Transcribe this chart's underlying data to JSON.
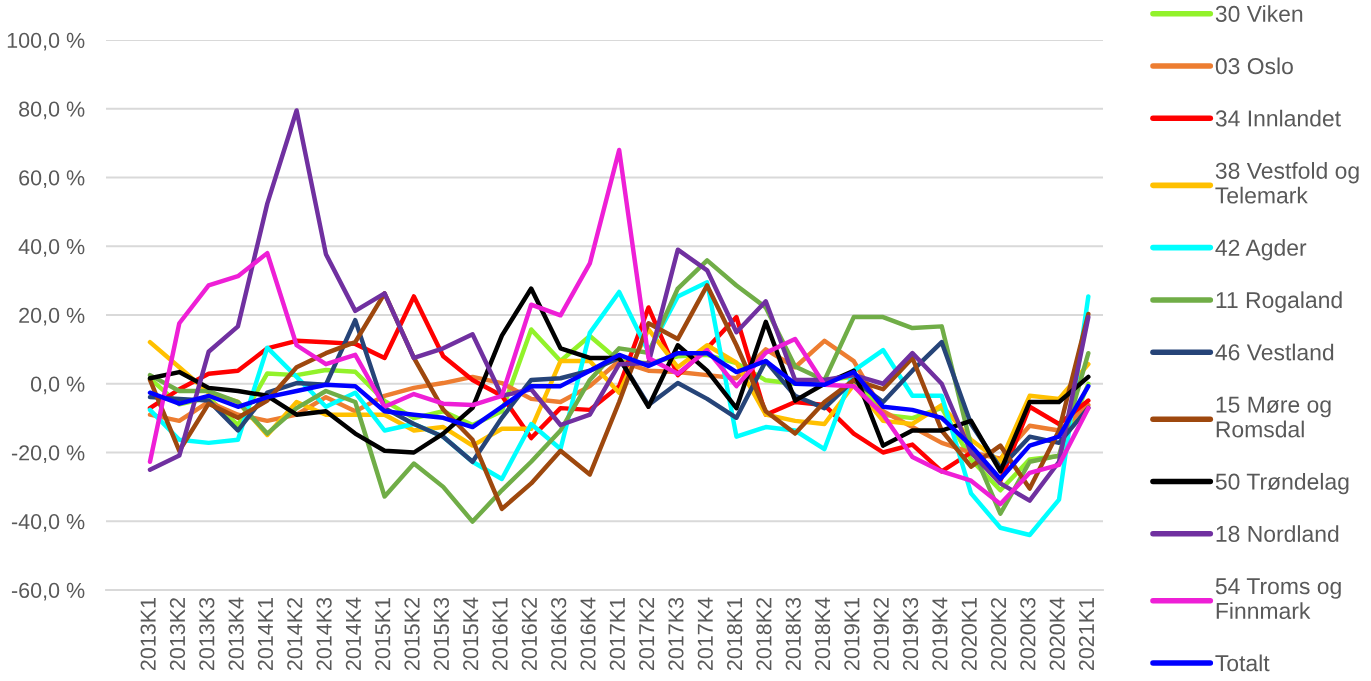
{
  "chart_data": {
    "type": "line",
    "categories": [
      "2013K1",
      "2013K2",
      "2013K3",
      "2013K4",
      "2014K1",
      "2014K2",
      "2014K3",
      "2014K4",
      "2015K1",
      "2015K2",
      "2015K3",
      "2015K4",
      "2016K1",
      "2016K2",
      "2016K3",
      "2016K4",
      "2017K1",
      "2017K2",
      "2017K3",
      "2017K4",
      "2018K1",
      "2018K2",
      "2018K3",
      "2018K4",
      "2019K1",
      "2019K2",
      "2019K3",
      "2019K4",
      "2020K1",
      "2020K2",
      "2020K3",
      "2020K4",
      "2021K1"
    ],
    "series": [
      {
        "name": "30 Viken",
        "color": "#92f22a",
        "values": [
          1.5,
          -6,
          -4,
          -12,
          3,
          2.5,
          4,
          3.5,
          -5,
          -10,
          -8,
          -12,
          -8,
          15.8,
          6.6,
          13.9,
          6.6,
          6,
          8,
          8.4,
          6,
          1,
          0,
          1,
          2,
          -9,
          -10,
          -7,
          -22,
          -31,
          -22,
          -21,
          0
        ]
      },
      {
        "name": "03 Oslo",
        "color": "#ed7d31",
        "values": [
          -9,
          -10.8,
          -5.3,
          -9,
          -10.8,
          -9,
          -3.9,
          -8,
          -3.5,
          -1.2,
          0.2,
          2,
          0.2,
          -4.4,
          -5.3,
          -0.7,
          6.6,
          3.8,
          3.4,
          2.5,
          1.6,
          10,
          4.8,
          12.5,
          6.6,
          -8,
          -12.6,
          -17.2,
          -20,
          -21.8,
          -12.2,
          -13.6,
          -6.2
        ]
      },
      {
        "name": "34 Innlandet",
        "color": "#ff0000",
        "values": [
          -7.1,
          -1.6,
          2.9,
          3.8,
          10.3,
          12.5,
          12.1,
          11.6,
          7.5,
          25.4,
          8,
          1.1,
          -3.5,
          -15.8,
          -7.1,
          -7.6,
          -0.7,
          22.2,
          2.5,
          10.3,
          19.4,
          -9,
          -5.3,
          -6.2,
          -14.5,
          -20,
          -17.7,
          -25.5,
          -20,
          -28.2,
          -6.7,
          -11.7,
          -4.9
        ]
      },
      {
        "name": "38 Vestfold og Telemark",
        "color": "#ffc000",
        "values": [
          12.1,
          4.8,
          -2.6,
          -5.3,
          -14.9,
          -5.3,
          -9,
          -9,
          -9,
          -13.6,
          -12.6,
          -18,
          -13.1,
          -13.1,
          6.6,
          6.6,
          -2.6,
          15.8,
          4.8,
          11.2,
          6.1,
          -9,
          -10.8,
          -11.7,
          -0.3,
          -10.8,
          -11.7,
          -6.2,
          -16.3,
          -22.7,
          -3.5,
          -4.4,
          5.7
        ]
      },
      {
        "name": "42 Agder",
        "color": "#00ffff",
        "values": [
          -7.6,
          -16.3,
          -17.2,
          -16.3,
          10.5,
          2,
          -6.7,
          -2.6,
          -13.6,
          -11.7,
          -15.4,
          -22.7,
          -27.7,
          -11.7,
          -19,
          14.8,
          26.7,
          9.3,
          25.4,
          29.5,
          -15.4,
          -12.6,
          -13.6,
          -19,
          3.8,
          9.8,
          -3.5,
          -3.5,
          -31.9,
          -41.9,
          -44,
          -33.7,
          25.4
        ]
      },
      {
        "name": "11 Rogaland",
        "color": "#70ad47",
        "values": [
          2.5,
          -2.1,
          -2.1,
          -5.3,
          -14.5,
          -7.1,
          -2.1,
          -5.3,
          -32.8,
          -23.2,
          -30,
          -40.1,
          -31,
          -22.7,
          -13.6,
          1.1,
          10.3,
          9,
          27.7,
          35.9,
          28.6,
          22.2,
          5,
          1,
          19.4,
          19.4,
          16.2,
          16.7,
          -18,
          -37.8,
          -22.7,
          -20.9,
          8.9
        ]
      },
      {
        "name": "46 Vestland",
        "color": "#264478",
        "values": [
          -3.9,
          -4.4,
          -4.9,
          -13.6,
          -2.6,
          0.2,
          -0.3,
          18.5,
          -7.1,
          -11.7,
          -15.4,
          -22.7,
          -9.9,
          1.1,
          1.6,
          3.8,
          7.5,
          -6.2,
          0.2,
          -4.4,
          -9.9,
          6.6,
          -3.5,
          -7.1,
          1.1,
          -5.3,
          3.8,
          12.1,
          -11.7,
          -24.5,
          -15.4,
          -17.2,
          -7
        ]
      },
      {
        "name": "15 Møre og Romsdal",
        "color": "#9e480e",
        "values": [
          1.1,
          -19.5,
          -5.8,
          -9.9,
          -4.9,
          4.8,
          8.9,
          12.1,
          26.3,
          7.5,
          -7.5,
          -16.3,
          -36.4,
          -29,
          -19.5,
          -26.4,
          -5.3,
          17.6,
          13,
          28.6,
          11.2,
          -8,
          -14.5,
          -5.3,
          1.1,
          -1.6,
          7.5,
          -13.6,
          -24.1,
          -18,
          -30.5,
          -13.6,
          20.3
        ]
      },
      {
        "name": "50 Trøndelag",
        "color": "#000000",
        "values": [
          1.6,
          3.4,
          -1.2,
          -2.1,
          -3.5,
          -9,
          -8,
          -14.5,
          -19.5,
          -20,
          -14.5,
          -7,
          14,
          27.7,
          10.3,
          7.5,
          7.5,
          -6.7,
          11.2,
          3.8,
          -7.1,
          18,
          -4.9,
          0,
          3.8,
          -18,
          -13.6,
          -13.6,
          -10.8,
          -25.5,
          -5.3,
          -5.3,
          2
        ]
      },
      {
        "name": "18 Nordland",
        "color": "#7030a0",
        "values": [
          -25,
          -20.9,
          9.3,
          16.7,
          52.4,
          79.5,
          37.7,
          21.2,
          26.3,
          7.5,
          10.3,
          14.4,
          -3.5,
          -1.6,
          -12,
          -9,
          5.7,
          6,
          39,
          33,
          15,
          24,
          1.1,
          1.1,
          2.5,
          0,
          8.9,
          0,
          -20,
          -29,
          -34,
          -22.7,
          19.4
        ]
      },
      {
        "name": "54 Troms og Finnmark",
        "color": "#ee1fd6",
        "values": [
          -22.7,
          17.6,
          28.6,
          31.3,
          38,
          11.2,
          5.7,
          8.4,
          -6.7,
          -3,
          -5.8,
          -6.2,
          -3.5,
          23,
          19.9,
          35,
          68,
          7.5,
          2.9,
          9.8,
          -0.7,
          9,
          13,
          -0.3,
          -0.7,
          -9,
          -21.3,
          -25.5,
          -28.2,
          -35,
          -25.9,
          -23.6,
          -7.1
        ]
      },
      {
        "name": "Totalt",
        "color": "#0000ff",
        "values": [
          -2.6,
          -5.8,
          -3.5,
          -6.7,
          -3.9,
          -2.1,
          -0.3,
          -0.7,
          -8,
          -9,
          -9.9,
          -12.6,
          -6.7,
          -0.7,
          -0.7,
          3.8,
          8.4,
          5.2,
          8.9,
          8.9,
          3.4,
          6.6,
          0,
          -0.3,
          3.4,
          -6.7,
          -7.6,
          -9.9,
          -18,
          -27.7,
          -18,
          -15.4,
          -0.7
        ]
      }
    ],
    "ylim": [
      -60,
      100
    ],
    "yticks": [
      {
        "value": -60,
        "label": "-60,0 %"
      },
      {
        "value": -40,
        "label": "-40,0 %"
      },
      {
        "value": -20,
        "label": "-20,0 %"
      },
      {
        "value": 0,
        "label": "0,0 %"
      },
      {
        "value": 20,
        "label": "20,0 %"
      },
      {
        "value": 40,
        "label": "40,0 %"
      },
      {
        "value": 60,
        "label": "60,0 %"
      },
      {
        "value": 80,
        "label": "80,0 %"
      },
      {
        "value": 100,
        "label": "100,0 %"
      }
    ],
    "grid": "y",
    "legend": "right",
    "line_style": "solid"
  }
}
